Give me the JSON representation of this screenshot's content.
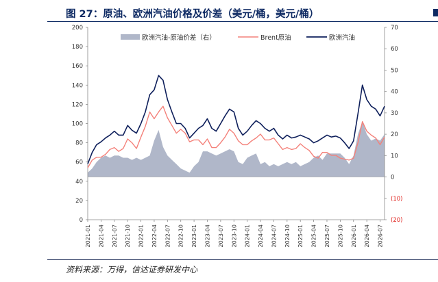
{
  "figure": {
    "title": "图 27：原油、欧洲汽油价格及价差（美元/桶，美元/桶）",
    "source": "资料来源：万得，信达证券研发中心"
  },
  "colors": {
    "title": "#0e2a63",
    "spread_fill": "#b0b7c9",
    "brent": "#f4817a",
    "gasoline": "#0e1f5b",
    "negative_tick": "#e0201b"
  },
  "chart_data": {
    "type": "line",
    "title": "",
    "y_left": {
      "min": 0,
      "max": 200,
      "ticks": [
        "0",
        "20",
        "40",
        "60",
        "80",
        "100",
        "120",
        "140",
        "160",
        "180",
        "200"
      ]
    },
    "y_right": {
      "min": -20,
      "max": 70,
      "ticks": [
        "(20)",
        "(10)",
        "0",
        "10",
        "20",
        "30",
        "40",
        "50",
        "60",
        "70"
      ]
    },
    "x_ticks": [
      "2021-01",
      "2021-04",
      "2021-07",
      "2021-10",
      "2022-01",
      "2022-04",
      "2022-07",
      "2022-10",
      "2023-01",
      "2023-04",
      "2023-07",
      "2023-10",
      "2024-01",
      "2024-04",
      "2024-07",
      "2024-10",
      "2025-01",
      "2025-04",
      "2025-07",
      "2025-10",
      "2026-01",
      "2026-04",
      "2026-07"
    ],
    "legend": {
      "placement": "top",
      "spread": "欧洲汽油-原油价差（右）",
      "brent": "Brent原油",
      "gasoline": "欧洲汽油"
    },
    "months": [
      "2021-01",
      "2021-02",
      "2021-03",
      "2021-04",
      "2021-05",
      "2021-06",
      "2021-07",
      "2021-08",
      "2021-09",
      "2021-10",
      "2021-11",
      "2021-12",
      "2022-01",
      "2022-02",
      "2022-03",
      "2022-04",
      "2022-05",
      "2022-06",
      "2022-07",
      "2022-08",
      "2022-09",
      "2022-10",
      "2022-11",
      "2022-12",
      "2023-01",
      "2023-02",
      "2023-03",
      "2023-04",
      "2023-05",
      "2023-06",
      "2023-07",
      "2023-08",
      "2023-09",
      "2023-10",
      "2023-11",
      "2023-12",
      "2024-01",
      "2024-02",
      "2024-03",
      "2024-04",
      "2024-05",
      "2024-06",
      "2024-07",
      "2024-08",
      "2024-09",
      "2024-10",
      "2024-11",
      "2024-12",
      "2025-01",
      "2025-02",
      "2025-03",
      "2025-04",
      "2025-05",
      "2025-06",
      "2025-07",
      "2025-08",
      "2025-09",
      "2025-10",
      "2025-11",
      "2025-12",
      "2026-01",
      "2026-02",
      "2026-03",
      "2026-04",
      "2026-05",
      "2026-06",
      "2026-07",
      "2026-08"
    ],
    "series": [
      {
        "name": "Brent原油",
        "axis": "left",
        "values": [
          54,
          62,
          65,
          65,
          68,
          73,
          75,
          71,
          74,
          84,
          80,
          74,
          86,
          97,
          112,
          105,
          112,
          118,
          106,
          98,
          90,
          94,
          90,
          81,
          83,
          83,
          78,
          84,
          75,
          75,
          80,
          86,
          94,
          90,
          82,
          78,
          78,
          82,
          85,
          89,
          83,
          83,
          85,
          79,
          73,
          75,
          73,
          74,
          79,
          75,
          72,
          66,
          64,
          70,
          70,
          67,
          67,
          64,
          63,
          62,
          64,
          80,
          102,
          92,
          88,
          85,
          78,
          86
        ]
      },
      {
        "name": "欧洲汽油",
        "axis": "left",
        "values": [
          58,
          70,
          78,
          81,
          85,
          88,
          92,
          88,
          88,
          98,
          93,
          90,
          100,
          112,
          130,
          135,
          150,
          145,
          125,
          112,
          100,
          100,
          95,
          85,
          90,
          95,
          98,
          105,
          95,
          92,
          100,
          108,
          115,
          112,
          95,
          88,
          92,
          98,
          103,
          100,
          95,
          92,
          95,
          88,
          84,
          88,
          85,
          86,
          88,
          86,
          84,
          80,
          82,
          85,
          88,
          86,
          87,
          85,
          80,
          74,
          82,
          110,
          140,
          125,
          118,
          115,
          108,
          118
        ]
      },
      {
        "name": "欧洲汽油-原油价差（右）",
        "axis": "right",
        "values": [
          2,
          4,
          7,
          9,
          10,
          9,
          10,
          10,
          9,
          9,
          8,
          9,
          8,
          9,
          10,
          17,
          22,
          14,
          10,
          8,
          6,
          4,
          3,
          2,
          5,
          7,
          12,
          12,
          11,
          10,
          11,
          12,
          13,
          12,
          7,
          6,
          9,
          10,
          11,
          6,
          7,
          5,
          6,
          5,
          6,
          7,
          6,
          7,
          5,
          6,
          7,
          9,
          10,
          8,
          11,
          11,
          11,
          11,
          9,
          6,
          10,
          20,
          26,
          20,
          17,
          18,
          17,
          20
        ]
      }
    ]
  }
}
